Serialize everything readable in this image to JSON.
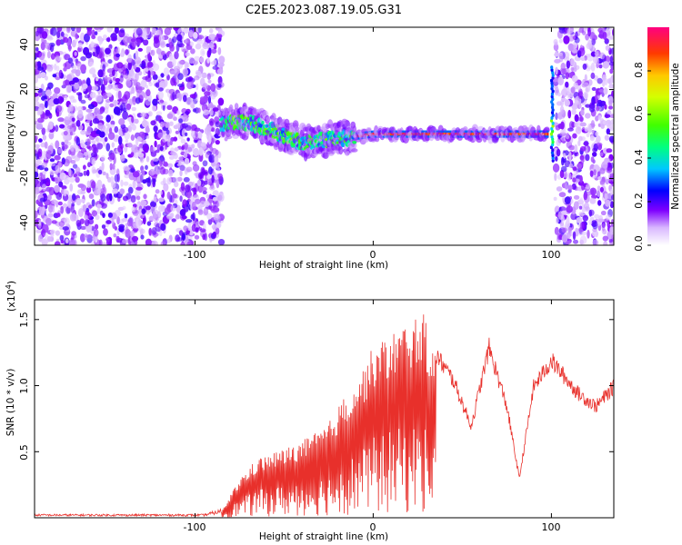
{
  "title": "C2E5.2023.087.19.05.G31",
  "chart_data": [
    {
      "type": "heatmap",
      "xlabel": "Height of straight line (km)",
      "ylabel": "Frequency (Hz)",
      "xlim": [
        -190,
        135
      ],
      "ylim": [
        -50,
        48
      ],
      "xticks": [
        "-100",
        "0",
        "100"
      ],
      "yticks": [
        "40",
        "20",
        "0",
        "-20",
        "-40"
      ],
      "colorbar": {
        "label": "Normalized spectral amplitude",
        "range": [
          0,
          1
        ],
        "ticks": [
          "0.0",
          "0.2",
          "0.4",
          "0.6",
          "0.8"
        ]
      },
      "noise_regions_km": [
        [
          -190,
          -85
        ],
        [
          102,
          135
        ]
      ],
      "signal_track": {
        "x": [
          -85,
          -75,
          -65,
          -55,
          -45,
          -38,
          -30,
          -20,
          -10,
          0,
          20,
          60,
          98
        ],
        "frequency_hz": [
          4,
          6,
          4,
          1,
          -2,
          -4,
          -3,
          -2,
          -1,
          0,
          0,
          0,
          0
        ],
        "strong_from_km": -10
      },
      "spike_km": [
        100,
        101
      ]
    },
    {
      "type": "line",
      "xlabel": "Height of straight line (km)",
      "ylabel": "SNR (10 * v/v)",
      "y_multiplier": "(x10",
      "y_multiplier_exp": "4",
      "xlim": [
        -190,
        135
      ],
      "ylim": [
        0,
        1.65
      ],
      "xticks": [
        "-100",
        "0",
        "100"
      ],
      "yticks": [
        "0.5",
        "1.0",
        "1.5"
      ],
      "series": [
        {
          "color": "#e8302b",
          "envelope": {
            "x": [
              -190,
              -95,
              -85,
              -75,
              -65,
              -55,
              -45,
              -35,
              -25,
              -15,
              -5,
              0,
              10,
              20,
              28,
              35,
              45,
              55,
              65,
              75,
              82,
              90,
              100,
              115,
              125,
              135
            ],
            "y": [
              0.02,
              0.02,
              0.05,
              0.3,
              0.45,
              0.5,
              0.55,
              0.62,
              0.72,
              0.95,
              1.15,
              1.3,
              1.4,
              1.5,
              1.55,
              1.25,
              1.05,
              0.7,
              1.3,
              0.85,
              0.3,
              1.0,
              1.2,
              0.95,
              0.85,
              1.0
            ]
          }
        }
      ]
    }
  ]
}
